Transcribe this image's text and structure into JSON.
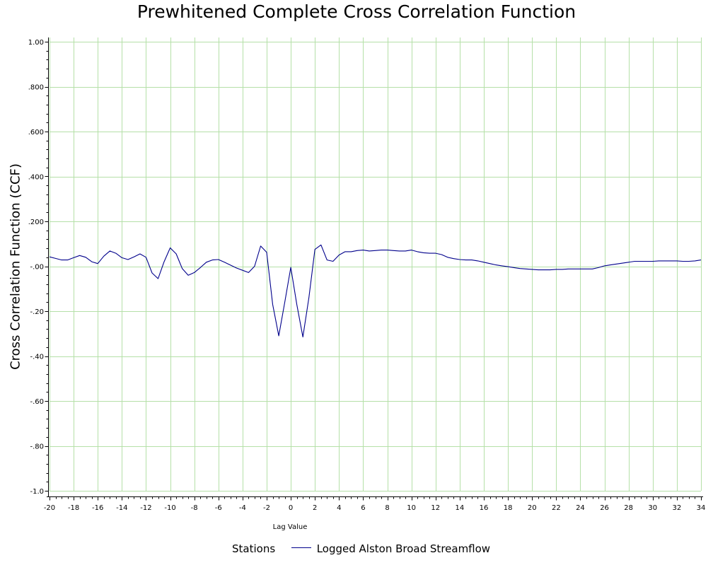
{
  "chart_data": {
    "type": "line",
    "title": "Prewhitened Complete Cross Correlation Function",
    "xlabel": "Lag Value",
    "ylabel": "Cross Correlation Function (CCF)",
    "xlim": [
      -20,
      34
    ],
    "ylim": [
      -1.0,
      1.0
    ],
    "grid": true,
    "grid_color": "#b5e0a8",
    "line_color": "#00008b",
    "x_ticks": [
      -20,
      -18,
      -16,
      -14,
      -12,
      -10,
      -8,
      -6,
      -4,
      -2,
      0,
      2,
      4,
      6,
      8,
      10,
      12,
      14,
      16,
      18,
      20,
      22,
      24,
      26,
      28,
      30,
      32,
      34
    ],
    "x_tick_labels": [
      "-20",
      "-18",
      "-16",
      "-14",
      "-12",
      "-10",
      "-8",
      "-6",
      "-4",
      "-2",
      "0",
      "2",
      "4",
      "6",
      "8",
      "10",
      "12",
      "14",
      "16",
      "18",
      "20",
      "22",
      "24",
      "26",
      "28",
      "30",
      "32",
      "34"
    ],
    "y_ticks": [
      1.0,
      0.8,
      0.6,
      0.4,
      0.2,
      0.0,
      -0.2,
      -0.4,
      -0.6,
      -0.8,
      -1.0
    ],
    "y_tick_labels": [
      "1.00",
      ".800",
      ".600",
      ".400",
      ".200",
      "-.00",
      "-.20",
      "-.40",
      "-.60",
      "-.80",
      "-1.0"
    ],
    "legend": {
      "title": "Stations",
      "position": "bottom"
    },
    "series": [
      {
        "name": "Logged Alston Broad Streamflow",
        "x": [
          -20,
          -19.5,
          -19,
          -18.5,
          -18,
          -17.5,
          -17,
          -16.5,
          -16,
          -15.5,
          -15,
          -14.5,
          -14,
          -13.5,
          -13,
          -12.5,
          -12,
          -11.5,
          -11,
          -10.5,
          -10,
          -9.5,
          -9,
          -8.5,
          -8,
          -7.5,
          -7,
          -6.5,
          -6,
          -5.5,
          -5,
          -4.5,
          -4,
          -3.5,
          -3,
          -2.5,
          -2,
          -1.5,
          -1,
          -0.5,
          0,
          0.5,
          1,
          1.5,
          2,
          2.5,
          3,
          3.5,
          4,
          4.5,
          5,
          5.5,
          6,
          6.5,
          7,
          7.5,
          8,
          8.5,
          9,
          9.5,
          10,
          10.5,
          11,
          11.5,
          12,
          12.5,
          13,
          13.5,
          14,
          14.5,
          15,
          15.5,
          16,
          16.5,
          17,
          17.5,
          18,
          18.5,
          19,
          19.5,
          20,
          20.5,
          21,
          21.5,
          22,
          22.5,
          23,
          23.5,
          24,
          24.5,
          25,
          25.5,
          26,
          26.5,
          27,
          27.5,
          28,
          28.5,
          29,
          29.5,
          30,
          30.5,
          31,
          31.5,
          32,
          32.5,
          33,
          33.5,
          34
        ],
        "values": [
          0.042,
          0.035,
          0.028,
          0.028,
          0.038,
          0.048,
          0.04,
          0.02,
          0.012,
          0.045,
          0.068,
          0.058,
          0.038,
          0.03,
          0.042,
          0.055,
          0.04,
          -0.03,
          -0.055,
          0.02,
          0.082,
          0.055,
          -0.01,
          -0.04,
          -0.028,
          -0.006,
          0.018,
          0.028,
          0.03,
          0.018,
          0.005,
          -0.008,
          -0.018,
          -0.028,
          0.0,
          0.09,
          0.062,
          -0.17,
          -0.31,
          -0.16,
          -0.005,
          -0.17,
          -0.315,
          -0.14,
          0.075,
          0.095,
          0.028,
          0.022,
          0.05,
          0.065,
          0.065,
          0.07,
          0.072,
          0.068,
          0.07,
          0.072,
          0.072,
          0.07,
          0.068,
          0.068,
          0.072,
          0.065,
          0.06,
          0.058,
          0.058,
          0.052,
          0.04,
          0.034,
          0.03,
          0.028,
          0.028,
          0.024,
          0.018,
          0.012,
          0.006,
          0.002,
          -0.002,
          -0.006,
          -0.01,
          -0.012,
          -0.014,
          -0.016,
          -0.016,
          -0.016,
          -0.014,
          -0.014,
          -0.012,
          -0.012,
          -0.012,
          -0.012,
          -0.012,
          -0.006,
          0.002,
          0.006,
          0.01,
          0.014,
          0.018,
          0.022,
          0.022,
          0.022,
          0.022,
          0.024,
          0.024,
          0.024,
          0.024,
          0.022,
          0.022,
          0.024,
          0.028
        ]
      }
    ]
  }
}
